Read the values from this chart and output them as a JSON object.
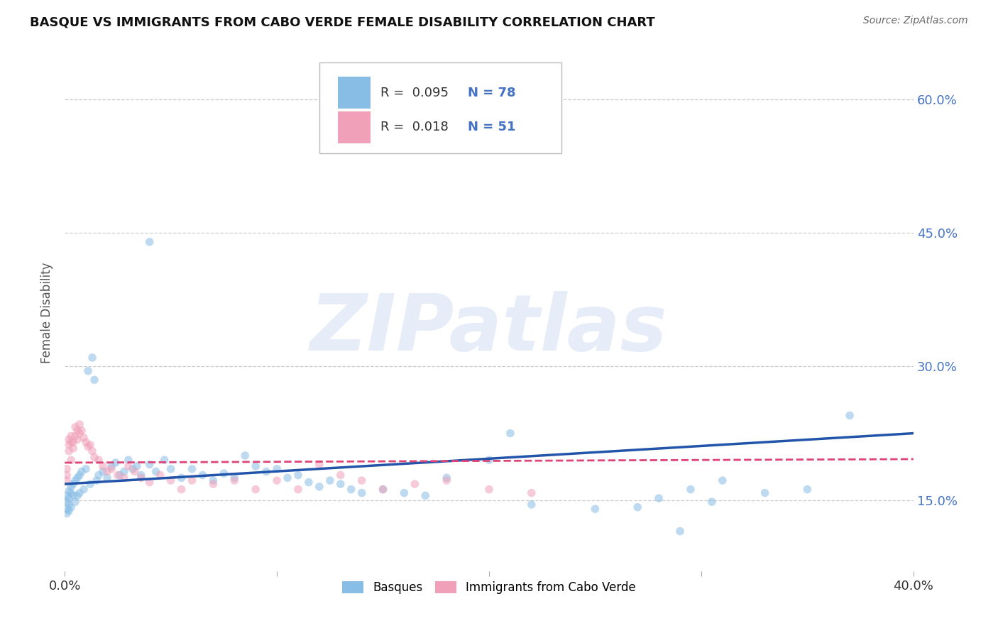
{
  "title": "BASQUE VS IMMIGRANTS FROM CABO VERDE FEMALE DISABILITY CORRELATION CHART",
  "source": "Source: ZipAtlas.com",
  "ylabel": "Female Disability",
  "watermark_text": "ZIPatlas",
  "series": [
    {
      "name": "Basques",
      "R": 0.095,
      "N": 78,
      "color": "#88bde6",
      "line_color": "#2255aa",
      "line_style": "solid",
      "x": [
        0.001,
        0.001,
        0.001,
        0.001,
        0.002,
        0.002,
        0.002,
        0.002,
        0.003,
        0.003,
        0.003,
        0.004,
        0.004,
        0.005,
        0.005,
        0.006,
        0.006,
        0.007,
        0.007,
        0.008,
        0.009,
        0.01,
        0.011,
        0.012,
        0.013,
        0.014,
        0.015,
        0.016,
        0.018,
        0.02,
        0.022,
        0.024,
        0.026,
        0.028,
        0.03,
        0.032,
        0.034,
        0.036,
        0.04,
        0.043,
        0.047,
        0.05,
        0.055,
        0.06,
        0.065,
        0.07,
        0.075,
        0.08,
        0.085,
        0.09,
        0.095,
        0.1,
        0.105,
        0.11,
        0.115,
        0.12,
        0.125,
        0.13,
        0.135,
        0.14,
        0.15,
        0.16,
        0.17,
        0.18,
        0.2,
        0.21,
        0.22,
        0.25,
        0.27,
        0.29,
        0.31,
        0.33,
        0.35,
        0.37,
        0.28,
        0.295,
        0.305,
        0.04
      ],
      "y": [
        0.155,
        0.148,
        0.14,
        0.135,
        0.16,
        0.152,
        0.145,
        0.138,
        0.165,
        0.158,
        0.142,
        0.168,
        0.155,
        0.172,
        0.148,
        0.175,
        0.155,
        0.178,
        0.158,
        0.182,
        0.162,
        0.185,
        0.295,
        0.168,
        0.31,
        0.285,
        0.172,
        0.178,
        0.182,
        0.175,
        0.188,
        0.192,
        0.178,
        0.182,
        0.195,
        0.185,
        0.188,
        0.178,
        0.19,
        0.182,
        0.195,
        0.185,
        0.175,
        0.185,
        0.178,
        0.172,
        0.18,
        0.175,
        0.2,
        0.188,
        0.182,
        0.185,
        0.175,
        0.178,
        0.17,
        0.165,
        0.172,
        0.168,
        0.162,
        0.158,
        0.162,
        0.158,
        0.155,
        0.175,
        0.195,
        0.225,
        0.145,
        0.14,
        0.142,
        0.115,
        0.172,
        0.158,
        0.162,
        0.245,
        0.152,
        0.162,
        0.148,
        0.44
      ],
      "trend_x0": 0.0,
      "trend_x1": 0.4,
      "trend_y0": 0.168,
      "trend_y1": 0.225
    },
    {
      "name": "Immigrants from Cabo Verde",
      "R": 0.018,
      "N": 51,
      "color": "#f0a0b8",
      "line_color": "#dd4477",
      "line_style": "dashed",
      "x": [
        0.001,
        0.001,
        0.001,
        0.002,
        0.002,
        0.002,
        0.003,
        0.003,
        0.003,
        0.004,
        0.004,
        0.005,
        0.005,
        0.006,
        0.006,
        0.007,
        0.007,
        0.008,
        0.009,
        0.01,
        0.011,
        0.012,
        0.013,
        0.014,
        0.016,
        0.018,
        0.02,
        0.022,
        0.025,
        0.028,
        0.03,
        0.033,
        0.036,
        0.04,
        0.045,
        0.05,
        0.055,
        0.06,
        0.07,
        0.08,
        0.09,
        0.1,
        0.11,
        0.12,
        0.13,
        0.14,
        0.15,
        0.165,
        0.18,
        0.2,
        0.22
      ],
      "y": [
        0.185,
        0.178,
        0.172,
        0.218,
        0.212,
        0.205,
        0.222,
        0.215,
        0.195,
        0.215,
        0.208,
        0.232,
        0.222,
        0.228,
        0.218,
        0.235,
        0.225,
        0.228,
        0.22,
        0.215,
        0.21,
        0.212,
        0.205,
        0.198,
        0.195,
        0.188,
        0.182,
        0.185,
        0.178,
        0.175,
        0.188,
        0.182,
        0.175,
        0.17,
        0.178,
        0.172,
        0.162,
        0.172,
        0.168,
        0.172,
        0.162,
        0.172,
        0.162,
        0.19,
        0.178,
        0.172,
        0.162,
        0.168,
        0.172,
        0.162,
        0.158
      ],
      "trend_x0": 0.0,
      "trend_x1": 0.4,
      "trend_y0": 0.192,
      "trend_y1": 0.196
    }
  ],
  "xlim": [
    0.0,
    0.4
  ],
  "ylim": [
    0.07,
    0.65
  ],
  "yticks": [
    0.15,
    0.3,
    0.45,
    0.6
  ],
  "ytick_labels": [
    "15.0%",
    "30.0%",
    "45.0%",
    "60.0%"
  ],
  "xticks": [
    0.0,
    0.1,
    0.2,
    0.3,
    0.4
  ],
  "xtick_labels": [
    "0.0%",
    "",
    "",
    "",
    "40.0%"
  ],
  "grid_color": "#cccccc",
  "bg_color": "#ffffff",
  "marker_size": 70,
  "marker_alpha": 0.55
}
